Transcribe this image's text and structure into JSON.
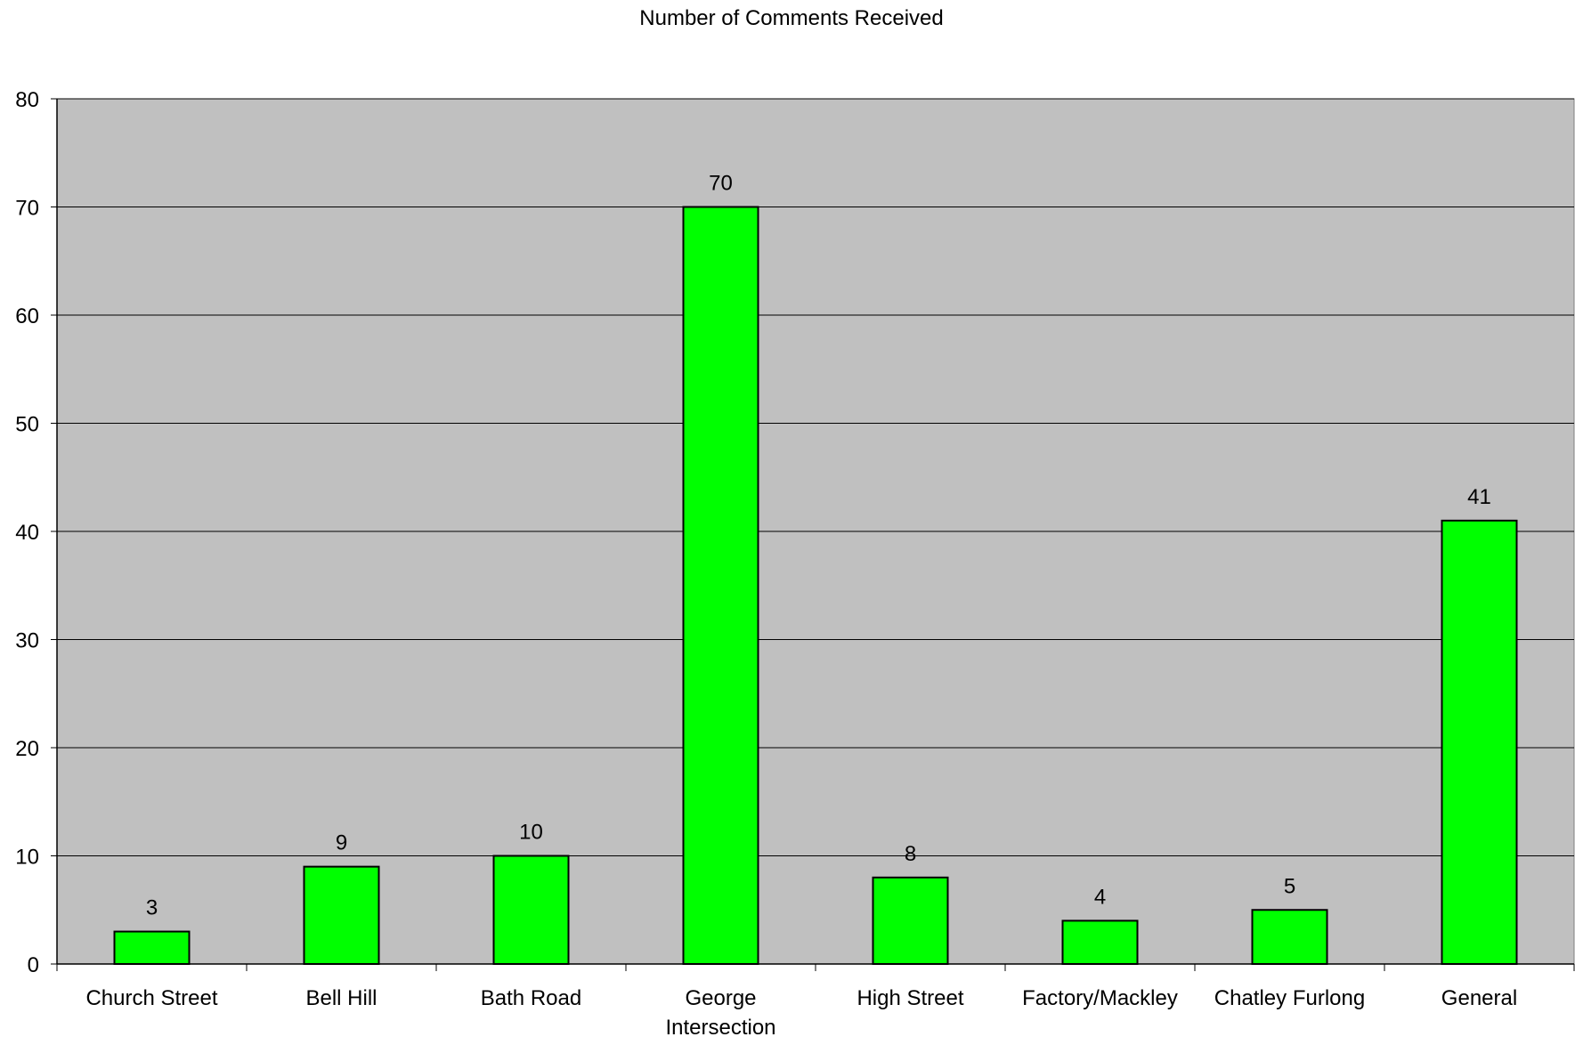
{
  "chart_data": {
    "type": "bar",
    "title": "Number of Comments Received",
    "xlabel": "",
    "ylabel": "",
    "categories": [
      "Church Street",
      "Bell Hill",
      "Bath Road",
      "George Intersection",
      "High Street",
      "Factory/Mackley",
      "Chatley Furlong",
      "General"
    ],
    "category_lines": [
      [
        "Church Street"
      ],
      [
        "Bell Hill"
      ],
      [
        "Bath Road"
      ],
      [
        "George",
        "Intersection"
      ],
      [
        "High Street"
      ],
      [
        "Factory/Mackley"
      ],
      [
        "Chatley Furlong"
      ],
      [
        "General"
      ]
    ],
    "values": [
      3,
      9,
      10,
      70,
      8,
      4,
      5,
      41
    ],
    "ylim": [
      0,
      80
    ],
    "yticks": [
      0,
      10,
      20,
      30,
      40,
      50,
      60,
      70,
      80
    ],
    "grid": true,
    "legend": "none",
    "colors": {
      "bar": "#00ff00",
      "plot_background": "#c0c0c0",
      "grid": "#000000"
    }
  }
}
